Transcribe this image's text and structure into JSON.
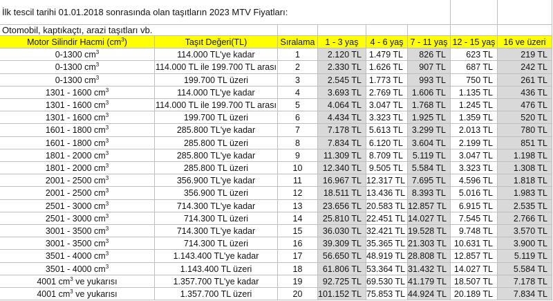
{
  "title": "İlk tescil tarihi 01.01.2018 sonrasında olan taşıtların 2023 MTV Fiyatları:",
  "subtitle": "Otomobil, kaptıkaçtı, arazi taşıtları vb.",
  "headers": [
    "Motor Silindir Hacmi (cm³)",
    "Taşıt Değeri(TL)",
    "Sıralama",
    "1 - 3 yaş",
    "4 - 6 yaş",
    "7 - 11 yaş",
    "12 - 15 yaş",
    "16 ve üzeri"
  ],
  "rows": [
    [
      "0-1300 cm³",
      "114.000 TL'ye kadar",
      "1",
      "2.120 TL",
      "1.479 TL",
      "826 TL",
      "623 TL",
      "219 TL"
    ],
    [
      "0-1300 cm³",
      "114.000 TL ile 199.700 TL arası",
      "2",
      "2.330 TL",
      "1.626 TL",
      "907 TL",
      "687 TL",
      "242 TL"
    ],
    [
      "0-1300 cm³",
      "199.700 TL üzeri",
      "3",
      "2.545 TL",
      "1.773 TL",
      "993 TL",
      "750 TL",
      "261 TL"
    ],
    [
      "1301 - 1600 cm³",
      "114.000 TL'ye kadar",
      "4",
      "3.693 TL",
      "2.769 TL",
      "1.606 TL",
      "1.135 TL",
      "436 TL"
    ],
    [
      "1301 - 1600 cm³",
      "114.000 TL ile 199.700 TL arası",
      "5",
      "4.064 TL",
      "3.047 TL",
      "1.768 TL",
      "1.245 TL",
      "476 TL"
    ],
    [
      "1301 - 1600 cm³",
      "199.700 TL üzeri",
      "6",
      "4.434 TL",
      "3.323 TL",
      "1.925 TL",
      "1.359 TL",
      "520 TL"
    ],
    [
      "1601 - 1800 cm³",
      "285.800 TL'ye kadar",
      "7",
      "7.178 TL",
      "5.613 TL",
      "3.299 TL",
      "2.013 TL",
      "780 TL"
    ],
    [
      "1601 - 1800 cm³",
      "285.800 TL üzeri",
      "8",
      "7.834 TL",
      "6.120 TL",
      "3.604 TL",
      "2.199 TL",
      "851 TL"
    ],
    [
      "1801 - 2000 cm³",
      "285.800 TL'ye kadar",
      "9",
      "11.309 TL",
      "8.709 TL",
      "5.119 TL",
      "3.047 TL",
      "1.198 TL"
    ],
    [
      "1801 - 2000 cm³",
      "285.800 TL üzeri",
      "10",
      "12.340 TL",
      "9.505 TL",
      "5.584 TL",
      "3.323 TL",
      "1.308 TL"
    ],
    [
      "2001 - 2500 cm³",
      "356.900 TL'ye kadar",
      "11",
      "16.967 TL",
      "12.317 TL",
      "7.695 TL",
      "4.596 TL",
      "1.818 TL"
    ],
    [
      "2001 - 2500 cm³",
      "356.900 TL üzeri",
      "12",
      "18.511 TL",
      "13.436 TL",
      "8.393 TL",
      "5.016 TL",
      "1.983 TL"
    ],
    [
      "2501 - 3000 cm³",
      "714.300 TL'ye kadar",
      "13",
      "23.656 TL",
      "20.583 TL",
      "12.857 TL",
      "6.915 TL",
      "2.535 TL"
    ],
    [
      "2501 - 3000 cm³",
      "714.300  TL üzeri",
      "14",
      "25.810 TL",
      "22.451 TL",
      "14.027 TL",
      "7.545 TL",
      "2.766 TL"
    ],
    [
      "3001 - 3500 cm³",
      "714.300 TL'ye kadar",
      "15",
      "36.030 TL",
      "32.421 TL",
      "19.528 TL",
      "9.748 TL",
      "3.570 TL"
    ],
    [
      "3001 - 3500 cm³",
      "714.300 TL üzeri",
      "16",
      "39.309 TL",
      "35.365 TL",
      "21.303 TL",
      "10.631 TL",
      "3.900 TL"
    ],
    [
      "3501 - 4000 cm³",
      "1.143.400 TL'ye kadar",
      "17",
      "56.650 TL",
      "48.919 TL",
      "28.808 TL",
      "12.857 TL",
      "5.119 TL"
    ],
    [
      "3501 - 4000 cm³",
      "1.143.400 TL üzeri",
      "18",
      "61.806 TL",
      "53.364 TL",
      "31.432 TL",
      "14.027 TL",
      "5.584 TL"
    ],
    [
      "4001 cm³ ve yukarısı",
      "1.357.700 TL'ye kadar",
      "19",
      "92.725 TL",
      "69.530 TL",
      "41.179 TL",
      "18.507 TL",
      "7.178 TL"
    ],
    [
      "4001 cm³ ve yukarısı",
      "1.357.700 TL üzeri",
      "20",
      "101.152 TL",
      "75.853 TL",
      "44.924 TL",
      "20.189 TL",
      "7.834 TL"
    ]
  ],
  "colors": {
    "header_bg": "#ffff00",
    "band_bg": "#d9d9d9",
    "grid": "#bdbdbd"
  }
}
